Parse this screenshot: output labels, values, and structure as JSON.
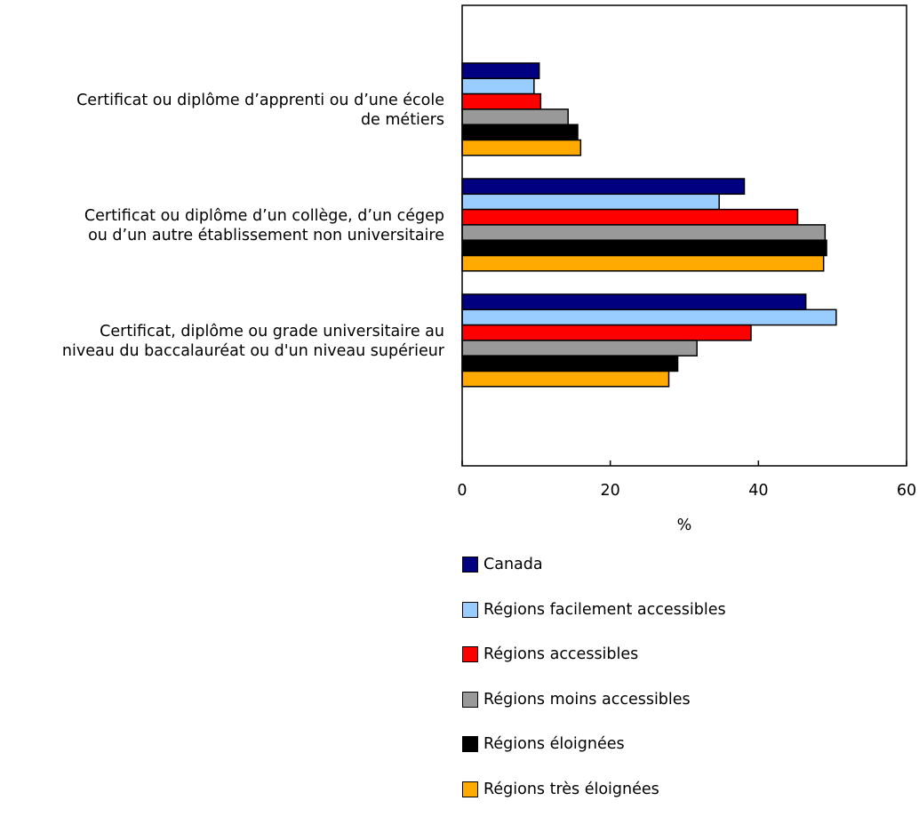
{
  "chart_data": {
    "type": "bar",
    "orientation": "horizontal",
    "categories": [
      [
        "Certificat ou diplôme d’apprenti ou d’une école",
        "de métiers"
      ],
      [
        "Certificat ou diplôme d’un collège, d’un cégep",
        "ou d’un autre établissement non universitaire"
      ],
      [
        "Certificat, diplôme ou grade universitaire au",
        "niveau du baccalauréat ou d'un niveau supérieur"
      ]
    ],
    "series": [
      {
        "name": "Canada",
        "color": "#000080",
        "values": [
          10.4,
          38.1,
          46.4
        ]
      },
      {
        "name": "Régions facilement accessibles",
        "color": "#99ccff",
        "values": [
          9.7,
          34.7,
          50.5
        ]
      },
      {
        "name": "Régions accessibles",
        "color": "#ff0000",
        "values": [
          10.6,
          45.3,
          39.0
        ]
      },
      {
        "name": "Régions moins accessibles",
        "color": "#999999",
        "values": [
          14.3,
          49.0,
          31.7
        ]
      },
      {
        "name": "Régions éloignées",
        "color": "#000000",
        "values": [
          15.6,
          49.2,
          29.1
        ]
      },
      {
        "name": "Régions très éloignées",
        "color": "#ffaa00",
        "values": [
          16.0,
          48.8,
          27.9
        ]
      }
    ],
    "xlabel": "%",
    "xlim": [
      0,
      60
    ],
    "xticks": [
      0,
      20,
      40,
      60
    ],
    "grid": false,
    "legend_position": "bottom"
  }
}
